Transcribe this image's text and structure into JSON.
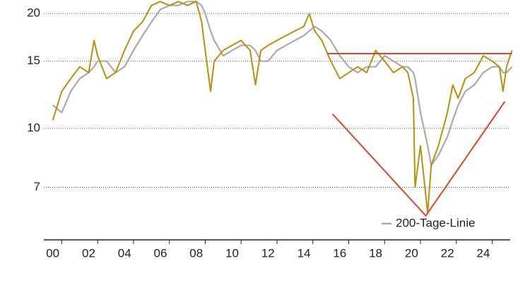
{
  "chart_data": {
    "type": "line",
    "x": [
      2000.0,
      2000.5,
      2001,
      2001.5,
      2002,
      2002.3,
      2002.5,
      2003,
      2003.5,
      2004,
      2004.5,
      2005,
      2005.5,
      2006,
      2006.5,
      2007,
      2007.5,
      2008,
      2008.3,
      2008.5,
      2008.8,
      2009,
      2009.5,
      2010,
      2010.5,
      2011,
      2011.3,
      2011.6,
      2012,
      2012.5,
      2013,
      2013.5,
      2014,
      2014.3,
      2014.6,
      2015,
      2015.5,
      2016,
      2016.5,
      2017,
      2017.5,
      2018,
      2018.5,
      2019,
      2019.5,
      2019.8,
      2020.1,
      2020.2,
      2020.5,
      2020.9,
      2021.1,
      2021.5,
      2022,
      2022.3,
      2022.6,
      2023,
      2023.5,
      2024,
      2024.5,
      2024.9,
      2025.1,
      2025.3,
      2025.6
    ],
    "series": [
      {
        "color": "#b8900c",
        "values": [
          10.5,
          12.5,
          13.5,
          14.5,
          14,
          17,
          15.5,
          13.5,
          14,
          16,
          18,
          19,
          21,
          21.5,
          21,
          21.5,
          21,
          21.5,
          19,
          16,
          12.5,
          15,
          16,
          16.5,
          17,
          16,
          13,
          16,
          16.5,
          17,
          17.5,
          18,
          18.5,
          20,
          18,
          17,
          15,
          13.5,
          14,
          14.5,
          14,
          16,
          15,
          14,
          14.5,
          14,
          12,
          7,
          9,
          6,
          8,
          9,
          11,
          13,
          12,
          13.5,
          14,
          15.5,
          15,
          14.5,
          12.5,
          14.5,
          16
        ]
      },
      {
        "name": "200-Tage-Linie",
        "color": "#aaaaaa",
        "values": [
          11.5,
          11,
          12.5,
          13.5,
          14,
          14.5,
          15,
          15,
          14,
          14.5,
          16,
          17.5,
          19,
          20.5,
          21,
          21,
          21.5,
          21.5,
          21,
          20,
          18,
          17,
          15.5,
          16,
          16.5,
          16.5,
          16,
          15,
          15,
          16,
          16.5,
          17,
          17.5,
          18,
          18.5,
          18,
          17,
          15.5,
          14.5,
          14,
          14.5,
          14.5,
          15.5,
          15,
          14.5,
          14.5,
          14,
          13.5,
          11,
          9,
          8,
          8.5,
          9.5,
          10.5,
          11.5,
          12.5,
          13,
          14,
          14.5,
          14.5,
          14,
          14,
          14.5
        ]
      }
    ],
    "trendlines": [
      {
        "color": "#d9472b",
        "x": [
          2015.3,
          2025.6
        ],
        "y": [
          15.7,
          15.7
        ]
      },
      {
        "color": "#d9472b",
        "x": [
          2015.6,
          2020.8,
          2025.2
        ],
        "y": [
          10.9,
          5.9,
          11.75
        ]
      }
    ],
    "log_scale": true,
    "grid": true,
    "legend": "lower right",
    "xlim": [
      1999.5,
      2025.7
    ],
    "ylim": [
      5.1,
      21.7
    ],
    "yticks": [
      7,
      10,
      15,
      20
    ],
    "xticks": [
      {
        "value": 2000,
        "label": "00"
      },
      {
        "value": 2002,
        "label": "02"
      },
      {
        "value": 2004,
        "label": "04"
      },
      {
        "value": 2006,
        "label": "06"
      },
      {
        "value": 2008,
        "label": "08"
      },
      {
        "value": 2010,
        "label": "10"
      },
      {
        "value": 2012,
        "label": "12"
      },
      {
        "value": 2014,
        "label": "14"
      },
      {
        "value": 2016,
        "label": "16"
      },
      {
        "value": 2018,
        "label": "18"
      },
      {
        "value": 2020,
        "label": "20"
      },
      {
        "value": 2022,
        "label": "22"
      },
      {
        "value": 2024,
        "label": "24"
      }
    ]
  }
}
